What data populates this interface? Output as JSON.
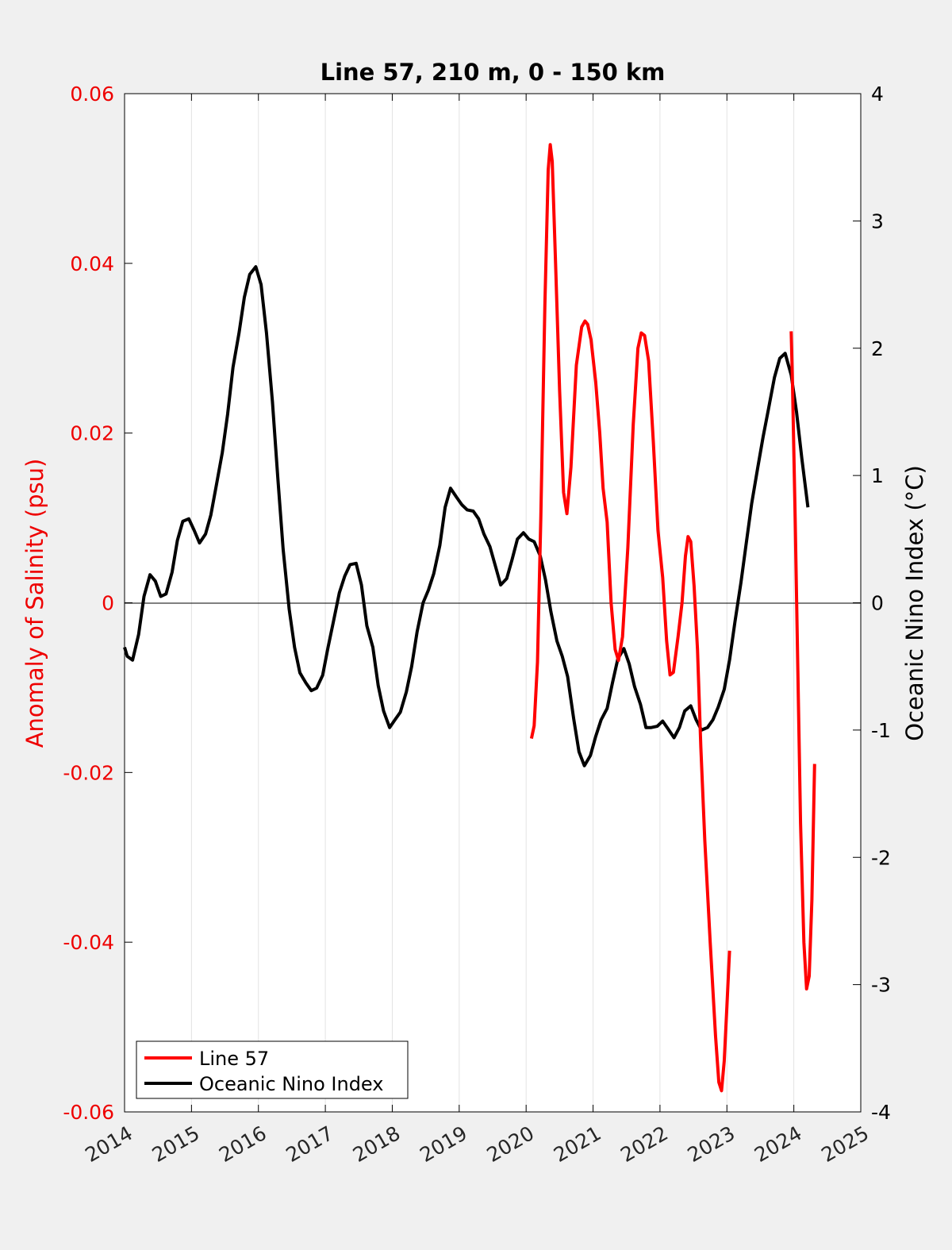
{
  "chart_data": {
    "type": "line",
    "title": "Line 57, 210 m, 0 - 150 km",
    "xlabel": "",
    "ylabel_left": "Anomaly of Salinity (psu)",
    "ylabel_right": "Oceanic Nino Index (°C)",
    "xlim": [
      2014,
      2025
    ],
    "ylim_left": [
      -0.06,
      0.06
    ],
    "ylim_right": [
      -4,
      4
    ],
    "x_ticks": [
      "2014",
      "2015",
      "2016",
      "2017",
      "2018",
      "2019",
      "2020",
      "2021",
      "2022",
      "2023",
      "2024",
      "2025"
    ],
    "left_ticks": [
      "0.06",
      "0.04",
      "0.02",
      "0",
      "-0.02",
      "-0.04",
      "-0.06"
    ],
    "right_ticks": [
      "4",
      "3",
      "2",
      "1",
      "0",
      "-1",
      "-2",
      "-3",
      "-4"
    ],
    "grid": "vertical",
    "legend_position": "bottom-left",
    "colors": {
      "left_axis": "#ee0000",
      "right_axis": "#000000",
      "line57": "#ff0000",
      "oni": "#000000"
    },
    "series": [
      {
        "name": "Line 57",
        "axis": "left",
        "segments": [
          [
            [
              2020.08,
              -0.016
            ],
            [
              2020.12,
              -0.0145
            ],
            [
              2020.17,
              -0.007
            ],
            [
              2020.22,
              0.01
            ],
            [
              2020.28,
              0.035
            ],
            [
              2020.33,
              0.051
            ],
            [
              2020.36,
              0.054
            ],
            [
              2020.39,
              0.052
            ],
            [
              2020.44,
              0.04
            ],
            [
              2020.5,
              0.025
            ],
            [
              2020.56,
              0.013
            ],
            [
              2020.61,
              0.0105
            ],
            [
              2020.67,
              0.016
            ],
            [
              2020.75,
              0.028
            ],
            [
              2020.83,
              0.0325
            ],
            [
              2020.88,
              0.0332
            ],
            [
              2020.92,
              0.0328
            ],
            [
              2020.97,
              0.031
            ],
            [
              2021.04,
              0.026
            ],
            [
              2021.1,
              0.02
            ],
            [
              2021.15,
              0.0135
            ],
            [
              2021.21,
              0.0095
            ],
            [
              2021.27,
              0.0
            ],
            [
              2021.33,
              -0.0055
            ],
            [
              2021.38,
              -0.0068
            ],
            [
              2021.44,
              -0.004
            ],
            [
              2021.52,
              0.0065
            ],
            [
              2021.6,
              0.021
            ],
            [
              2021.67,
              0.03
            ],
            [
              2021.72,
              0.0318
            ],
            [
              2021.77,
              0.0315
            ],
            [
              2021.83,
              0.0285
            ],
            [
              2021.9,
              0.019
            ],
            [
              2021.97,
              0.0085
            ],
            [
              2022.04,
              0.003
            ],
            [
              2022.1,
              -0.0045
            ],
            [
              2022.15,
              -0.0085
            ],
            [
              2022.2,
              -0.0082
            ],
            [
              2022.27,
              -0.004
            ],
            [
              2022.33,
              0.0
            ],
            [
              2022.38,
              0.0055
            ],
            [
              2022.42,
              0.0078
            ],
            [
              2022.46,
              0.0072
            ],
            [
              2022.51,
              0.002
            ],
            [
              2022.56,
              -0.0055
            ],
            [
              2022.61,
              -0.017
            ],
            [
              2022.67,
              -0.028
            ],
            [
              2022.75,
              -0.04
            ],
            [
              2022.83,
              -0.051
            ],
            [
              2022.88,
              -0.0565
            ],
            [
              2022.92,
              -0.0575
            ],
            [
              2022.96,
              -0.054
            ],
            [
              2023.0,
              -0.0475
            ],
            [
              2023.04,
              -0.041
            ]
          ],
          [
            [
              2023.96,
              0.032
            ],
            [
              2023.98,
              0.026
            ],
            [
              2024.02,
              0.01
            ],
            [
              2024.06,
              -0.008
            ],
            [
              2024.1,
              -0.026
            ],
            [
              2024.15,
              -0.04
            ],
            [
              2024.19,
              -0.0455
            ],
            [
              2024.23,
              -0.044
            ],
            [
              2024.27,
              -0.035
            ],
            [
              2024.31,
              -0.019
            ]
          ]
        ]
      },
      {
        "name": "Oceanic Nino Index",
        "axis": "right",
        "segments": [
          [
            [
              2014.0,
              -0.35
            ],
            [
              2014.04,
              -0.42
            ],
            [
              2014.12,
              -0.45
            ],
            [
              2014.21,
              -0.25
            ],
            [
              2014.29,
              0.05
            ],
            [
              2014.38,
              0.22
            ],
            [
              2014.46,
              0.17
            ],
            [
              2014.54,
              0.05
            ],
            [
              2014.62,
              0.07
            ],
            [
              2014.71,
              0.24
            ],
            [
              2014.79,
              0.49
            ],
            [
              2014.87,
              0.64
            ],
            [
              2014.96,
              0.66
            ],
            [
              2015.04,
              0.57
            ],
            [
              2015.12,
              0.47
            ],
            [
              2015.21,
              0.54
            ],
            [
              2015.29,
              0.69
            ],
            [
              2015.37,
              0.92
            ],
            [
              2015.46,
              1.18
            ],
            [
              2015.54,
              1.48
            ],
            [
              2015.62,
              1.85
            ],
            [
              2015.71,
              2.12
            ],
            [
              2015.79,
              2.4
            ],
            [
              2015.87,
              2.58
            ],
            [
              2015.96,
              2.64
            ],
            [
              2016.04,
              2.5
            ],
            [
              2016.12,
              2.12
            ],
            [
              2016.21,
              1.58
            ],
            [
              2016.29,
              0.98
            ],
            [
              2016.37,
              0.42
            ],
            [
              2016.46,
              -0.05
            ],
            [
              2016.54,
              -0.35
            ],
            [
              2016.62,
              -0.55
            ],
            [
              2016.71,
              -0.63
            ],
            [
              2016.79,
              -0.69
            ],
            [
              2016.87,
              -0.67
            ],
            [
              2016.96,
              -0.57
            ],
            [
              2017.04,
              -0.35
            ],
            [
              2017.12,
              -0.15
            ],
            [
              2017.21,
              0.08
            ],
            [
              2017.29,
              0.21
            ],
            [
              2017.37,
              0.3
            ],
            [
              2017.46,
              0.31
            ],
            [
              2017.54,
              0.14
            ],
            [
              2017.62,
              -0.18
            ],
            [
              2017.71,
              -0.35
            ],
            [
              2017.79,
              -0.65
            ],
            [
              2017.87,
              -0.85
            ],
            [
              2017.96,
              -0.98
            ],
            [
              2018.04,
              -0.92
            ],
            [
              2018.12,
              -0.86
            ],
            [
              2018.21,
              -0.7
            ],
            [
              2018.29,
              -0.5
            ],
            [
              2018.37,
              -0.23
            ],
            [
              2018.46,
              0.0
            ],
            [
              2018.54,
              0.1
            ],
            [
              2018.62,
              0.23
            ],
            [
              2018.71,
              0.45
            ],
            [
              2018.79,
              0.75
            ],
            [
              2018.87,
              0.9
            ],
            [
              2018.96,
              0.83
            ],
            [
              2019.04,
              0.77
            ],
            [
              2019.12,
              0.73
            ],
            [
              2019.21,
              0.72
            ],
            [
              2019.29,
              0.66
            ],
            [
              2019.37,
              0.54
            ],
            [
              2019.46,
              0.44
            ],
            [
              2019.54,
              0.29
            ],
            [
              2019.62,
              0.14
            ],
            [
              2019.71,
              0.19
            ],
            [
              2019.79,
              0.34
            ],
            [
              2019.87,
              0.5
            ],
            [
              2019.96,
              0.55
            ],
            [
              2020.04,
              0.5
            ],
            [
              2020.12,
              0.48
            ],
            [
              2020.21,
              0.37
            ],
            [
              2020.29,
              0.18
            ],
            [
              2020.37,
              -0.07
            ],
            [
              2020.46,
              -0.3
            ],
            [
              2020.54,
              -0.42
            ],
            [
              2020.62,
              -0.58
            ],
            [
              2020.71,
              -0.91
            ],
            [
              2020.79,
              -1.17
            ],
            [
              2020.87,
              -1.28
            ],
            [
              2020.96,
              -1.2
            ],
            [
              2021.04,
              -1.05
            ],
            [
              2021.12,
              -0.92
            ],
            [
              2021.21,
              -0.83
            ],
            [
              2021.29,
              -0.63
            ],
            [
              2021.37,
              -0.44
            ],
            [
              2021.46,
              -0.36
            ],
            [
              2021.54,
              -0.48
            ],
            [
              2021.62,
              -0.66
            ],
            [
              2021.71,
              -0.8
            ],
            [
              2021.79,
              -0.98
            ],
            [
              2021.87,
              -0.98
            ],
            [
              2021.96,
              -0.97
            ],
            [
              2022.04,
              -0.93
            ],
            [
              2022.12,
              -0.99
            ],
            [
              2022.21,
              -1.06
            ],
            [
              2022.29,
              -0.98
            ],
            [
              2022.37,
              -0.85
            ],
            [
              2022.46,
              -0.81
            ],
            [
              2022.54,
              -0.92
            ],
            [
              2022.62,
              -1.0
            ],
            [
              2022.71,
              -0.98
            ],
            [
              2022.79,
              -0.92
            ],
            [
              2022.87,
              -0.82
            ],
            [
              2022.96,
              -0.68
            ],
            [
              2023.04,
              -0.45
            ],
            [
              2023.12,
              -0.15
            ],
            [
              2023.21,
              0.16
            ],
            [
              2023.29,
              0.47
            ],
            [
              2023.37,
              0.78
            ],
            [
              2023.46,
              1.06
            ],
            [
              2023.54,
              1.3
            ],
            [
              2023.62,
              1.52
            ],
            [
              2023.71,
              1.77
            ],
            [
              2023.79,
              1.92
            ],
            [
              2023.87,
              1.96
            ],
            [
              2023.96,
              1.79
            ],
            [
              2024.04,
              1.5
            ],
            [
              2024.12,
              1.13
            ],
            [
              2024.21,
              0.75
            ]
          ]
        ]
      }
    ]
  }
}
